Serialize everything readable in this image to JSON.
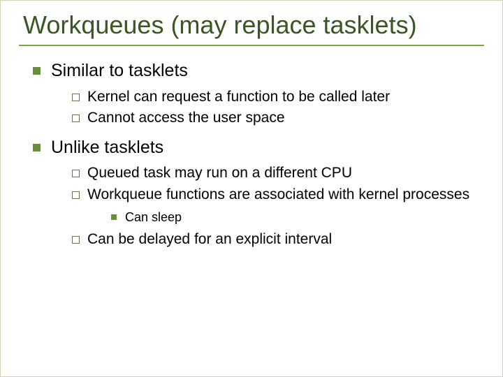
{
  "colors": {
    "title": "#385723",
    "rule": "#70ad47",
    "bullet_filled": "#6a8f3a",
    "bullet_outline": "#757147",
    "text": "#000000"
  },
  "title": "Workqueues (may replace tasklets)",
  "items": [
    {
      "label": "Similar to tasklets",
      "children": [
        {
          "label": "Kernel can request a function to be called later"
        },
        {
          "label": "Cannot access the user space"
        }
      ]
    },
    {
      "label": "Unlike tasklets",
      "children": [
        {
          "label": "Queued task may run on a different CPU"
        },
        {
          "label": "Workqueue functions are associated with kernel processes",
          "children": [
            {
              "label": "Can sleep"
            }
          ]
        },
        {
          "label": "Can be delayed for an explicit interval"
        }
      ]
    }
  ]
}
